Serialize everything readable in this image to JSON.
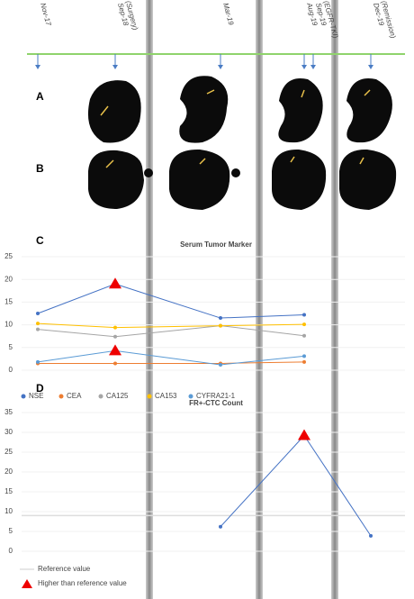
{
  "timeline": [
    {
      "date": "Nov-17"
    },
    {
      "date": "Sep-18",
      "note": "(Surgery)"
    },
    {
      "date": "Mar-19"
    },
    {
      "date": "Aug-19"
    },
    {
      "date": "Sep-19",
      "note": "(EGFR-TKI)"
    },
    {
      "date": "Dec-19",
      "note": "(Remission)"
    }
  ],
  "panels": {
    "a": "A",
    "b": "B",
    "c": "C",
    "d": "D"
  },
  "chart_data": [
    {
      "type": "line",
      "title": "Serum Tumor Marker",
      "ylim": [
        0,
        25
      ],
      "yticks": [
        0,
        5,
        10,
        15,
        20,
        25
      ],
      "series": [
        {
          "name": "NSE",
          "color": "#4472c4",
          "values": [
            12.5,
            19,
            11.5,
            12.2,
            null,
            null
          ],
          "high": [
            1
          ]
        },
        {
          "name": "CEA",
          "color": "#ed7d31",
          "values": [
            1.5,
            1.5,
            1.5,
            1.8,
            null,
            null
          ]
        },
        {
          "name": "CA125",
          "color": "#a5a5a5",
          "values": [
            9,
            7.4,
            9.8,
            7.6,
            null,
            null
          ]
        },
        {
          "name": "CA153",
          "color": "#ffc000",
          "values": [
            10.3,
            9.4,
            9.8,
            10.1,
            null,
            null
          ]
        },
        {
          "name": "CYFRA21-1",
          "color": "#5b9bd5",
          "values": [
            1.8,
            4.3,
            1.2,
            3.1,
            null,
            null
          ],
          "high": [
            1
          ]
        }
      ]
    },
    {
      "type": "line",
      "title": "FR+-CTC Count",
      "ylim": [
        0,
        35
      ],
      "yticks": [
        0,
        5,
        10,
        15,
        20,
        25,
        30,
        35
      ],
      "reference": 9,
      "series": [
        {
          "color": "#4472c4",
          "values": [
            null,
            null,
            6.2,
            29.2,
            null,
            3.9
          ],
          "high": [
            3
          ]
        }
      ]
    }
  ],
  "legend": {
    "reference": "Reference value",
    "high": "Higher than reference value"
  }
}
